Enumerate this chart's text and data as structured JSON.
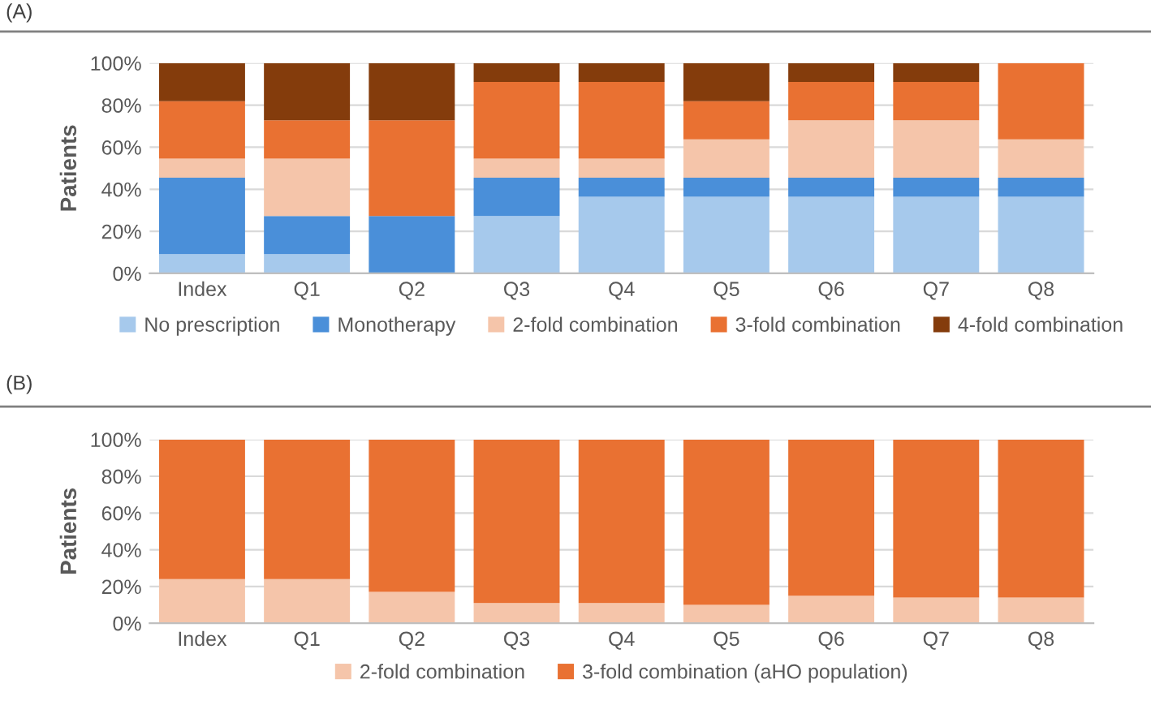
{
  "chart_data": [
    {
      "type": "bar",
      "title": "(A)",
      "ylabel": "Patients",
      "stacked": true,
      "categories": [
        "Index",
        "Q1",
        "Q2",
        "Q3",
        "Q4",
        "Q5",
        "Q6",
        "Q7",
        "Q8"
      ],
      "series": [
        {
          "name": "No prescription",
          "color": "#a6c9ec",
          "values": [
            9.1,
            9.1,
            0,
            27.3,
            36.4,
            36.4,
            36.4,
            36.4,
            36.4
          ]
        },
        {
          "name": "Monotherapy",
          "color": "#4a8fd9",
          "values": [
            36.4,
            18.2,
            27.3,
            18.2,
            9.1,
            9.1,
            9.1,
            9.1,
            9.1
          ]
        },
        {
          "name": "2-fold combination",
          "color": "#f5c5aa",
          "values": [
            9.1,
            27.3,
            0,
            9.1,
            9.1,
            18.2,
            27.3,
            27.3,
            18.2
          ]
        },
        {
          "name": "3-fold combination",
          "color": "#e97132",
          "values": [
            27.3,
            18.2,
            45.5,
            36.4,
            36.4,
            18.2,
            18.2,
            18.2,
            36.3
          ]
        },
        {
          "name": "4-fold combination",
          "color": "#843c0c",
          "values": [
            18.1,
            27.2,
            27.2,
            9.0,
            9.0,
            18.1,
            9.0,
            9.0,
            0
          ]
        }
      ],
      "ylim": [
        0,
        100
      ],
      "yticks": [
        {
          "value": 0,
          "label": "0%"
        },
        {
          "value": 20,
          "label": "20%"
        },
        {
          "value": 40,
          "label": "40%"
        },
        {
          "value": 60,
          "label": "60%"
        },
        {
          "value": 80,
          "label": "80%"
        },
        {
          "value": 100,
          "label": "100%"
        }
      ],
      "grid": "y",
      "legend": "bottom"
    },
    {
      "type": "bar",
      "title": "(B)",
      "ylabel": "Patients",
      "stacked": true,
      "categories": [
        "Index",
        "Q1",
        "Q2",
        "Q3",
        "Q4",
        "Q5",
        "Q6",
        "Q7",
        "Q8"
      ],
      "series": [
        {
          "name": "2-fold combination",
          "color": "#f5c5aa",
          "values": [
            24,
            24,
            17,
            11,
            11,
            10,
            15,
            14,
            14
          ]
        },
        {
          "name": "3-fold combination (aHO population)",
          "color": "#e97132",
          "values": [
            76,
            76,
            83,
            89,
            89,
            90,
            85,
            86,
            86
          ]
        }
      ],
      "ylim": [
        0,
        100
      ],
      "yticks": [
        {
          "value": 0,
          "label": "0%"
        },
        {
          "value": 20,
          "label": "20%"
        },
        {
          "value": 40,
          "label": "40%"
        },
        {
          "value": 60,
          "label": "60%"
        },
        {
          "value": 80,
          "label": "80%"
        },
        {
          "value": 100,
          "label": "100%"
        }
      ],
      "grid": "y",
      "legend": "bottom"
    }
  ]
}
